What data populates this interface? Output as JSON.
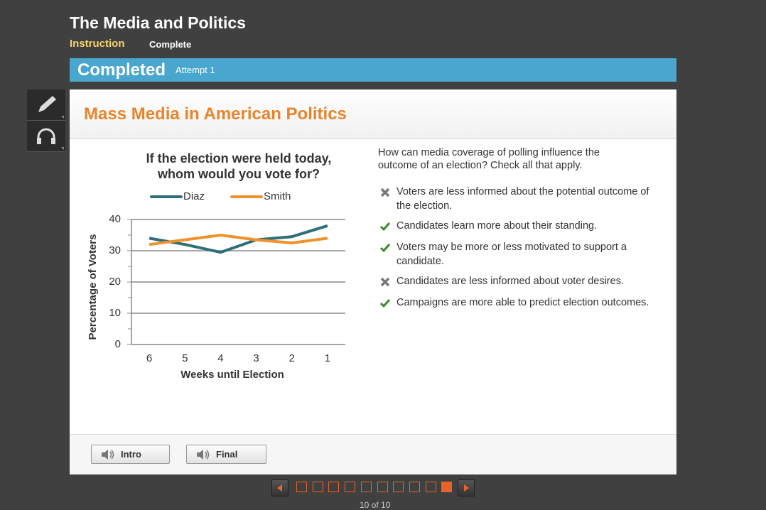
{
  "header": {
    "title": "The Media and Politics",
    "tabs": [
      "Instruction",
      "Complete"
    ]
  },
  "status": {
    "title": "Completed",
    "attempt": "Attempt 1"
  },
  "lesson": {
    "title": "Mass Media in American Politics"
  },
  "chart_data": {
    "type": "line",
    "title": "If the election were held today,\nwhom would you vote for?",
    "x_label": "Weeks until Election",
    "y_label": "Percentage of Voters",
    "categories": [
      "6",
      "5",
      "4",
      "3",
      "2",
      "1"
    ],
    "series": [
      {
        "name": "Diaz",
        "color": "#2f6f78",
        "values": [
          34,
          32,
          29.5,
          33.5,
          34.5,
          38
        ]
      },
      {
        "name": "Smith",
        "color": "#f0922b",
        "values": [
          32,
          33.5,
          35,
          33.5,
          32.5,
          34
        ]
      }
    ],
    "ylim": [
      0,
      40
    ],
    "yticks": [
      0,
      10,
      20,
      30,
      40
    ],
    "grid": true,
    "legend": "top"
  },
  "question": {
    "text": "How can media coverage of polling influence the outcome of an election? Check all that apply.",
    "options": [
      {
        "text": "Voters are less informed about the potential outcome of the election.",
        "mark": "x"
      },
      {
        "text": "Candidates learn more about their standing.",
        "mark": "check"
      },
      {
        "text": "Voters may be more or less motivated to support a candidate.",
        "mark": "check"
      },
      {
        "text": "Candidates are less informed about voter desires.",
        "mark": "x"
      },
      {
        "text": "Campaigns are more able to predict election outcomes.",
        "mark": "check"
      }
    ]
  },
  "buttons": [
    "Intro",
    "Final"
  ],
  "pager": {
    "pages": 10,
    "current": 10,
    "label": "10 of 10"
  }
}
